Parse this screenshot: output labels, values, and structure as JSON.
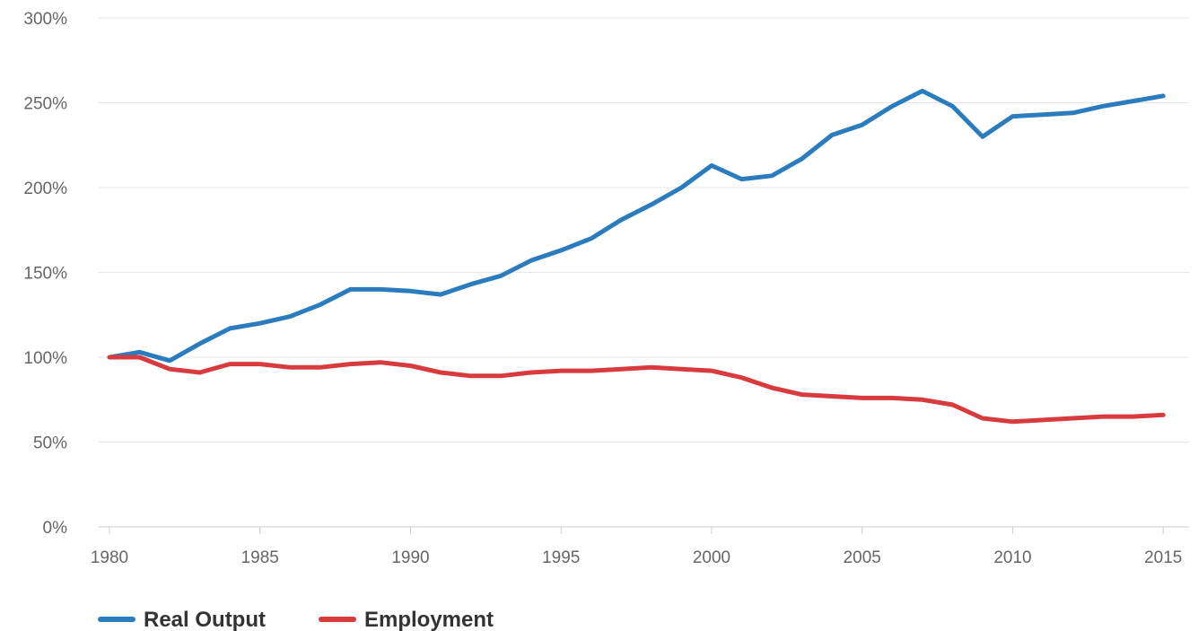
{
  "chart_data": {
    "type": "line",
    "title": "",
    "xlabel": "",
    "ylabel": "",
    "x": [
      1980,
      1981,
      1982,
      1983,
      1984,
      1985,
      1986,
      1987,
      1988,
      1989,
      1990,
      1991,
      1992,
      1993,
      1994,
      1995,
      1996,
      1997,
      1998,
      1999,
      2000,
      2001,
      2002,
      2003,
      2004,
      2005,
      2006,
      2007,
      2008,
      2009,
      2010,
      2011,
      2012,
      2013,
      2014,
      2015
    ],
    "xlim": [
      1980,
      2015.5
    ],
    "ylim": [
      0,
      300
    ],
    "y_ticks": [
      0,
      50,
      100,
      150,
      200,
      250,
      300
    ],
    "y_tick_labels": [
      "0%",
      "50%",
      "100%",
      "150%",
      "200%",
      "250%",
      "300%"
    ],
    "x_ticks": [
      1980,
      1985,
      1990,
      1995,
      2000,
      2005,
      2010,
      2015
    ],
    "x_tick_labels": [
      "1980",
      "1985",
      "1990",
      "1995",
      "2000",
      "2005",
      "2010",
      "2015"
    ],
    "grid": "horizontal",
    "legend": "bottom-left",
    "series": [
      {
        "name": "Real Output",
        "color": "#2b7bbf",
        "values": [
          100,
          103,
          98,
          108,
          117,
          120,
          124,
          131,
          140,
          140,
          139,
          137,
          143,
          148,
          157,
          163,
          170,
          181,
          190,
          200,
          213,
          205,
          207,
          217,
          231,
          237,
          248,
          257,
          248,
          230,
          242,
          243,
          244,
          248,
          251,
          254
        ]
      },
      {
        "name": "Employment",
        "color": "#d83b3e",
        "values": [
          100,
          100,
          93,
          91,
          96,
          96,
          94,
          94,
          96,
          97,
          95,
          91,
          89,
          89,
          91,
          92,
          92,
          93,
          94,
          93,
          92,
          88,
          82,
          78,
          77,
          76,
          76,
          75,
          72,
          64,
          62,
          63,
          64,
          65,
          65,
          66
        ]
      }
    ]
  }
}
